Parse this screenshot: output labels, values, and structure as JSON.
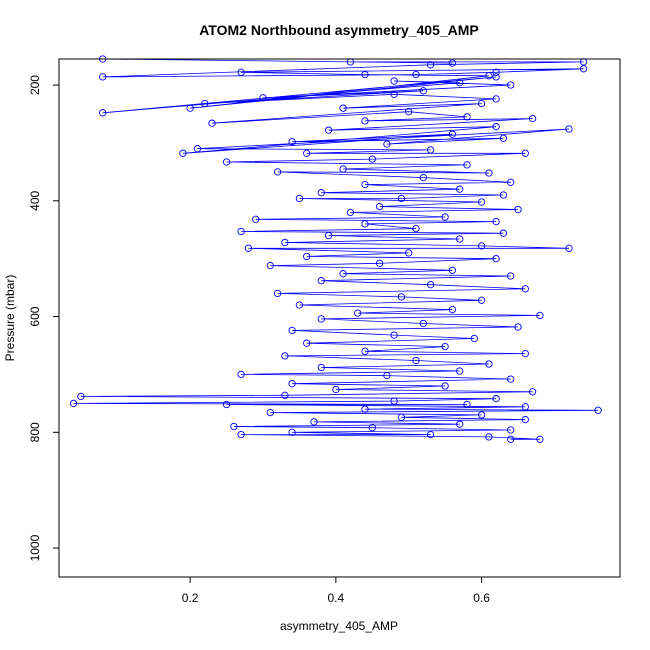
{
  "chart_data": {
    "type": "scatter",
    "title": "ATOM2 Northbound asymmetry_405_AMP",
    "xlabel": "asymmetry_405_AMP",
    "ylabel": "Pressure (mbar)",
    "xlim": [
      0.02,
      0.79
    ],
    "ylim": [
      1050,
      155
    ],
    "y_reversed": true,
    "x_ticks": [
      0.2,
      0.4,
      0.6
    ],
    "x_tick_labels": [
      "0.2",
      "0.4",
      "0.6"
    ],
    "y_ticks": [
      200,
      400,
      600,
      800,
      1000
    ],
    "y_tick_labels": [
      "200",
      "400",
      "600",
      "800",
      "1000"
    ],
    "grid": false,
    "legend": "none",
    "series_color": "#0000ff",
    "marker": "open-circle",
    "connected_lines": true,
    "series": [
      {
        "points": [
          [
            0.08,
            155
          ],
          [
            0.56,
            162
          ],
          [
            0.42,
            160
          ],
          [
            0.74,
            160
          ],
          [
            0.53,
            165
          ],
          [
            0.08,
            186
          ],
          [
            0.51,
            182
          ],
          [
            0.62,
            178
          ],
          [
            0.74,
            172
          ],
          [
            0.27,
            178
          ],
          [
            0.44,
            182
          ],
          [
            0.61,
            184
          ],
          [
            0.2,
            240
          ],
          [
            0.62,
            186
          ],
          [
            0.08,
            248
          ],
          [
            0.57,
            196
          ],
          [
            0.48,
            193
          ],
          [
            0.64,
            200
          ],
          [
            0.3,
            222
          ],
          [
            0.52,
            210
          ],
          [
            0.22,
            232
          ],
          [
            0.48,
            216
          ],
          [
            0.62,
            224
          ],
          [
            0.41,
            240
          ],
          [
            0.6,
            232
          ],
          [
            0.23,
            266
          ],
          [
            0.5,
            246
          ],
          [
            0.58,
            255
          ],
          [
            0.44,
            262
          ],
          [
            0.67,
            258
          ],
          [
            0.39,
            278
          ],
          [
            0.62,
            272
          ],
          [
            0.19,
            318
          ],
          [
            0.56,
            285
          ],
          [
            0.34,
            298
          ],
          [
            0.63,
            292
          ],
          [
            0.47,
            302
          ],
          [
            0.72,
            276
          ],
          [
            0.21,
            310
          ],
          [
            0.53,
            312
          ],
          [
            0.36,
            318
          ],
          [
            0.66,
            318
          ],
          [
            0.45,
            328
          ],
          [
            0.25,
            333
          ],
          [
            0.58,
            338
          ],
          [
            0.41,
            345
          ],
          [
            0.61,
            352
          ],
          [
            0.32,
            350
          ],
          [
            0.52,
            360
          ],
          [
            0.64,
            368
          ],
          [
            0.44,
            372
          ],
          [
            0.57,
            380
          ],
          [
            0.38,
            386
          ],
          [
            0.63,
            390
          ],
          [
            0.49,
            396
          ],
          [
            0.35,
            396
          ],
          [
            0.6,
            402
          ],
          [
            0.46,
            410
          ],
          [
            0.65,
            415
          ],
          [
            0.42,
            420
          ],
          [
            0.55,
            428
          ],
          [
            0.29,
            432
          ],
          [
            0.62,
            436
          ],
          [
            0.44,
            440
          ],
          [
            0.51,
            448
          ],
          [
            0.27,
            453
          ],
          [
            0.63,
            456
          ],
          [
            0.39,
            460
          ],
          [
            0.57,
            466
          ],
          [
            0.33,
            472
          ],
          [
            0.6,
            478
          ],
          [
            0.72,
            482
          ],
          [
            0.28,
            482
          ],
          [
            0.5,
            490
          ],
          [
            0.36,
            496
          ],
          [
            0.62,
            500
          ],
          [
            0.46,
            508
          ],
          [
            0.31,
            512
          ],
          [
            0.56,
            520
          ],
          [
            0.41,
            526
          ],
          [
            0.64,
            530
          ],
          [
            0.38,
            538
          ],
          [
            0.53,
            545
          ],
          [
            0.66,
            552
          ],
          [
            0.32,
            560
          ],
          [
            0.49,
            566
          ],
          [
            0.6,
            572
          ],
          [
            0.35,
            580
          ],
          [
            0.56,
            588
          ],
          [
            0.43,
            594
          ],
          [
            0.68,
            598
          ],
          [
            0.38,
            604
          ],
          [
            0.52,
            612
          ],
          [
            0.65,
            618
          ],
          [
            0.34,
            624
          ],
          [
            0.48,
            632
          ],
          [
            0.59,
            638
          ],
          [
            0.36,
            646
          ],
          [
            0.55,
            652
          ],
          [
            0.44,
            660
          ],
          [
            0.66,
            664
          ],
          [
            0.33,
            668
          ],
          [
            0.51,
            676
          ],
          [
            0.61,
            682
          ],
          [
            0.38,
            688
          ],
          [
            0.57,
            694
          ],
          [
            0.27,
            700
          ],
          [
            0.47,
            702
          ],
          [
            0.64,
            708
          ],
          [
            0.34,
            716
          ],
          [
            0.55,
            720
          ],
          [
            0.4,
            726
          ],
          [
            0.67,
            730
          ],
          [
            0.33,
            736
          ],
          [
            0.05,
            738
          ],
          [
            0.62,
            742
          ],
          [
            0.48,
            746
          ],
          [
            0.04,
            750
          ],
          [
            0.58,
            752
          ],
          [
            0.25,
            752
          ],
          [
            0.66,
            756
          ],
          [
            0.44,
            760
          ],
          [
            0.76,
            762
          ],
          [
            0.31,
            766
          ],
          [
            0.6,
            770
          ],
          [
            0.49,
            774
          ],
          [
            0.66,
            778
          ],
          [
            0.37,
            782
          ],
          [
            0.57,
            786
          ],
          [
            0.26,
            790
          ],
          [
            0.45,
            792
          ],
          [
            0.64,
            796
          ],
          [
            0.34,
            800
          ],
          [
            0.53,
            804
          ],
          [
            0.27,
            804
          ],
          [
            0.61,
            808
          ],
          [
            0.68,
            812
          ],
          [
            0.64,
            812
          ]
        ]
      }
    ]
  }
}
